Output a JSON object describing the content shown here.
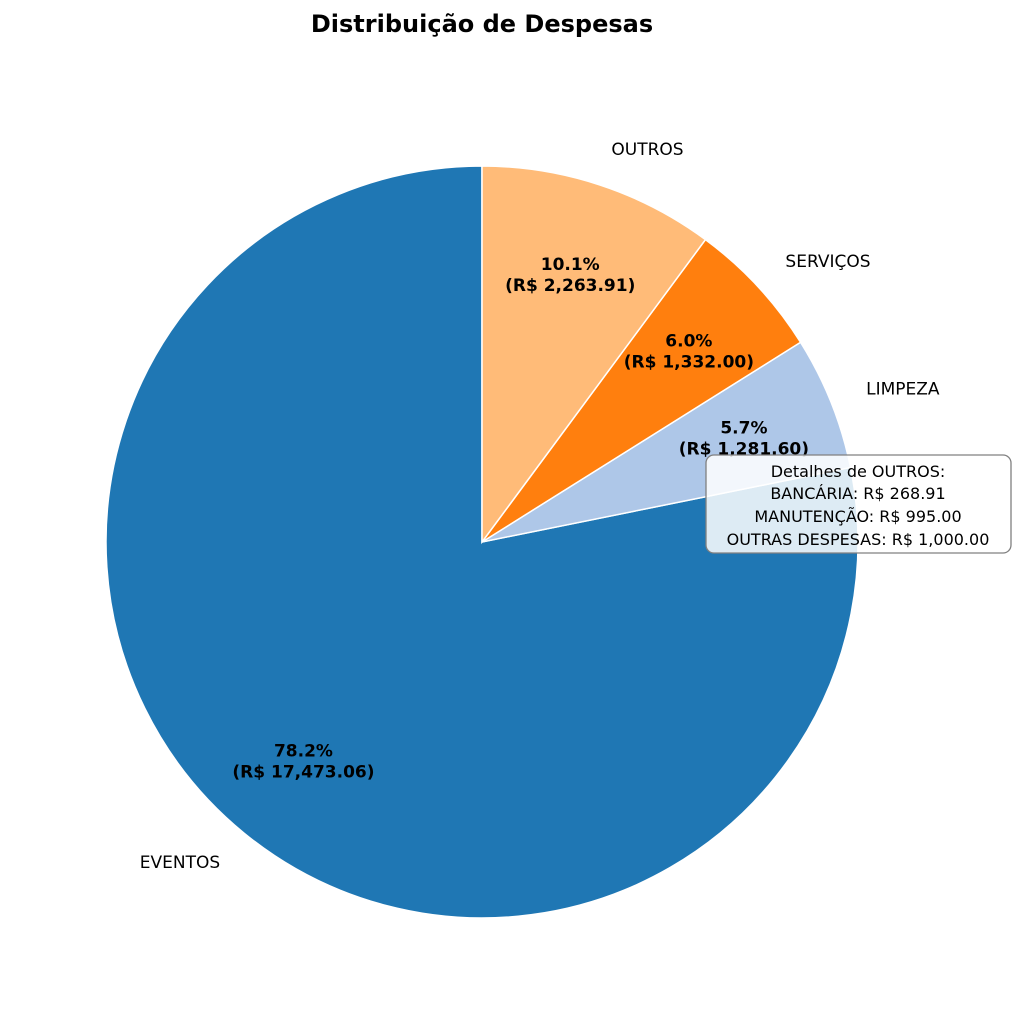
{
  "chart_data": {
    "type": "pie",
    "title": "Distribuição de Despesas",
    "start_angle_deg": 90,
    "direction": "counterclockwise",
    "slices": [
      {
        "label": "EVENTOS",
        "value": 17473.06,
        "percent_text": "78.2%",
        "value_text": "(R$ 17,473.06)",
        "color": "#1f77b4"
      },
      {
        "label": "LIMPEZA",
        "value": 1281.6,
        "percent_text": "5.7%",
        "value_text": "(R$ 1,281.60)",
        "color": "#aec7e8"
      },
      {
        "label": "SERVIÇOS",
        "value": 1332.0,
        "percent_text": "6.0%",
        "value_text": "(R$ 1,332.00)",
        "color": "#ff7f0e"
      },
      {
        "label": "OUTROS",
        "value": 2263.91,
        "percent_text": "10.1%",
        "value_text": "(R$ 2,263.91)",
        "color": "#ffbb78"
      }
    ],
    "annotation": {
      "lines": [
        "Detalhes de OUTROS:",
        "BANCÁRIA: R$ 268.91",
        "MANUTENÇÃO: R$ 995.00",
        "OUTRAS DESPESAS: R$ 1,000.00"
      ],
      "placement": "right"
    }
  }
}
